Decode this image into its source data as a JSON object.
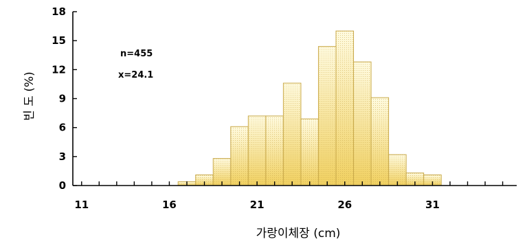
{
  "chart_data": {
    "type": "bar",
    "xlabel": "가랑이체장 (cm)",
    "ylabel": "빈 도 (%)",
    "annotations": [
      "n=455",
      "x=24.1"
    ],
    "x_ticks": [
      11,
      16,
      21,
      26,
      31
    ],
    "y_ticks": [
      0,
      3,
      6,
      9,
      12,
      15,
      18
    ],
    "xlim": [
      10.5,
      35.8
    ],
    "ylim": [
      0,
      18
    ],
    "grid": false,
    "bar_colors": {
      "fill_top": "#fffbe0",
      "fill_bottom": "#f0d060",
      "stroke": "#c8a848"
    },
    "bins": [
      {
        "x": 17,
        "value": 0.4
      },
      {
        "x": 18,
        "value": 1.1
      },
      {
        "x": 19,
        "value": 2.8
      },
      {
        "x": 20,
        "value": 6.1
      },
      {
        "x": 21,
        "value": 7.2
      },
      {
        "x": 22,
        "value": 7.2
      },
      {
        "x": 23,
        "value": 10.6
      },
      {
        "x": 24,
        "value": 6.9
      },
      {
        "x": 25,
        "value": 14.4
      },
      {
        "x": 26,
        "value": 16.0
      },
      {
        "x": 27,
        "value": 12.8
      },
      {
        "x": 28,
        "value": 9.1
      },
      {
        "x": 29,
        "value": 3.2
      },
      {
        "x": 30,
        "value": 1.3
      },
      {
        "x": 31,
        "value": 1.1
      }
    ]
  }
}
